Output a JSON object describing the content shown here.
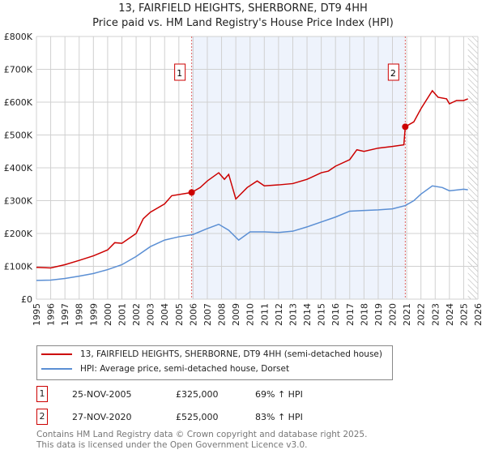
{
  "chart_data": {
    "type": "line",
    "title": "13, FAIRFIELD HEIGHTS, SHERBORNE, DT9 4HH",
    "subtitle": "Price paid vs. HM Land Registry's House Price Index (HPI)",
    "xlim": [
      1995,
      2026
    ],
    "ylim": [
      0,
      800000
    ],
    "x_ticks": [
      "1995",
      "1996",
      "1997",
      "1998",
      "1999",
      "2000",
      "2001",
      "2002",
      "2003",
      "2004",
      "2005",
      "2006",
      "2007",
      "2008",
      "2009",
      "2010",
      "2011",
      "2012",
      "2013",
      "2014",
      "2015",
      "2016",
      "2017",
      "2018",
      "2019",
      "2020",
      "2021",
      "2022",
      "2023",
      "2024",
      "2025",
      "2026"
    ],
    "y_ticks": [
      {
        "v": 0,
        "l": "£0"
      },
      {
        "v": 100000,
        "l": "£100K"
      },
      {
        "v": 200000,
        "l": "£200K"
      },
      {
        "v": 300000,
        "l": "£300K"
      },
      {
        "v": 400000,
        "l": "£400K"
      },
      {
        "v": 500000,
        "l": "£500K"
      },
      {
        "v": 600000,
        "l": "£600K"
      },
      {
        "v": 700000,
        "l": "£700K"
      },
      {
        "v": 800000,
        "l": "£800K"
      }
    ],
    "grid": true,
    "shaded_range": [
      2005.9,
      2020.9
    ],
    "hatched_from": 2025.3,
    "series": [
      {
        "name": "13, FAIRFIELD HEIGHTS, SHERBORNE, DT9 4HH (semi-detached house)",
        "color": "#cc0000",
        "x": [
          1995,
          1996,
          1997,
          1998,
          1999,
          2000,
          2000.5,
          2001,
          2002,
          2002.5,
          2003,
          2004,
          2004.5,
          2005.9,
          2006.5,
          2007,
          2007.8,
          2008.2,
          2008.5,
          2009,
          2009.8,
          2010.5,
          2011,
          2012,
          2013,
          2014,
          2015,
          2015.5,
          2016,
          2017,
          2017.5,
          2018,
          2019,
          2020,
          2020.8,
          2020.9,
          2021.5,
          2022,
          2022.8,
          2023.2,
          2023.8,
          2024,
          2024.5,
          2025,
          2025.3
        ],
        "y": [
          97000,
          95000,
          105000,
          118000,
          132000,
          150000,
          172000,
          170000,
          200000,
          245000,
          265000,
          290000,
          315000,
          325000,
          340000,
          360000,
          385000,
          365000,
          380000,
          305000,
          340000,
          360000,
          345000,
          348000,
          352000,
          365000,
          385000,
          390000,
          405000,
          425000,
          455000,
          450000,
          460000,
          465000,
          470000,
          525000,
          540000,
          580000,
          635000,
          615000,
          610000,
          595000,
          605000,
          605000,
          610000
        ]
      },
      {
        "name": "HPI: Average price, semi-detached house, Dorset",
        "color": "#5b8fd4",
        "x": [
          1995,
          1996,
          1997,
          1998,
          1999,
          2000,
          2001,
          2002,
          2003,
          2004,
          2005,
          2006,
          2007,
          2007.8,
          2008.5,
          2009.2,
          2010,
          2011,
          2012,
          2013,
          2014,
          2015,
          2016,
          2017,
          2018,
          2019,
          2020,
          2020.9,
          2021.5,
          2022,
          2022.8,
          2023.5,
          2024,
          2025,
          2025.3
        ],
        "y": [
          57000,
          58000,
          63000,
          70000,
          78000,
          90000,
          105000,
          130000,
          160000,
          180000,
          190000,
          197000,
          215000,
          228000,
          210000,
          180000,
          205000,
          205000,
          203000,
          207000,
          220000,
          235000,
          250000,
          268000,
          270000,
          272000,
          275000,
          285000,
          300000,
          320000,
          345000,
          340000,
          330000,
          335000,
          333000
        ]
      }
    ],
    "annotations": [
      {
        "label": "1",
        "x": 2005.9,
        "y": 325000
      },
      {
        "label": "2",
        "x": 2020.9,
        "y": 525000
      }
    ]
  },
  "sales": [
    {
      "num": "1",
      "date": "25-NOV-2005",
      "price": "£325,000",
      "hpi": "69% ↑ HPI"
    },
    {
      "num": "2",
      "date": "27-NOV-2020",
      "price": "£525,000",
      "hpi": "83% ↑ HPI"
    }
  ],
  "footer": [
    "Contains HM Land Registry data © Crown copyright and database right 2025.",
    "This data is licensed under the Open Government Licence v3.0."
  ]
}
